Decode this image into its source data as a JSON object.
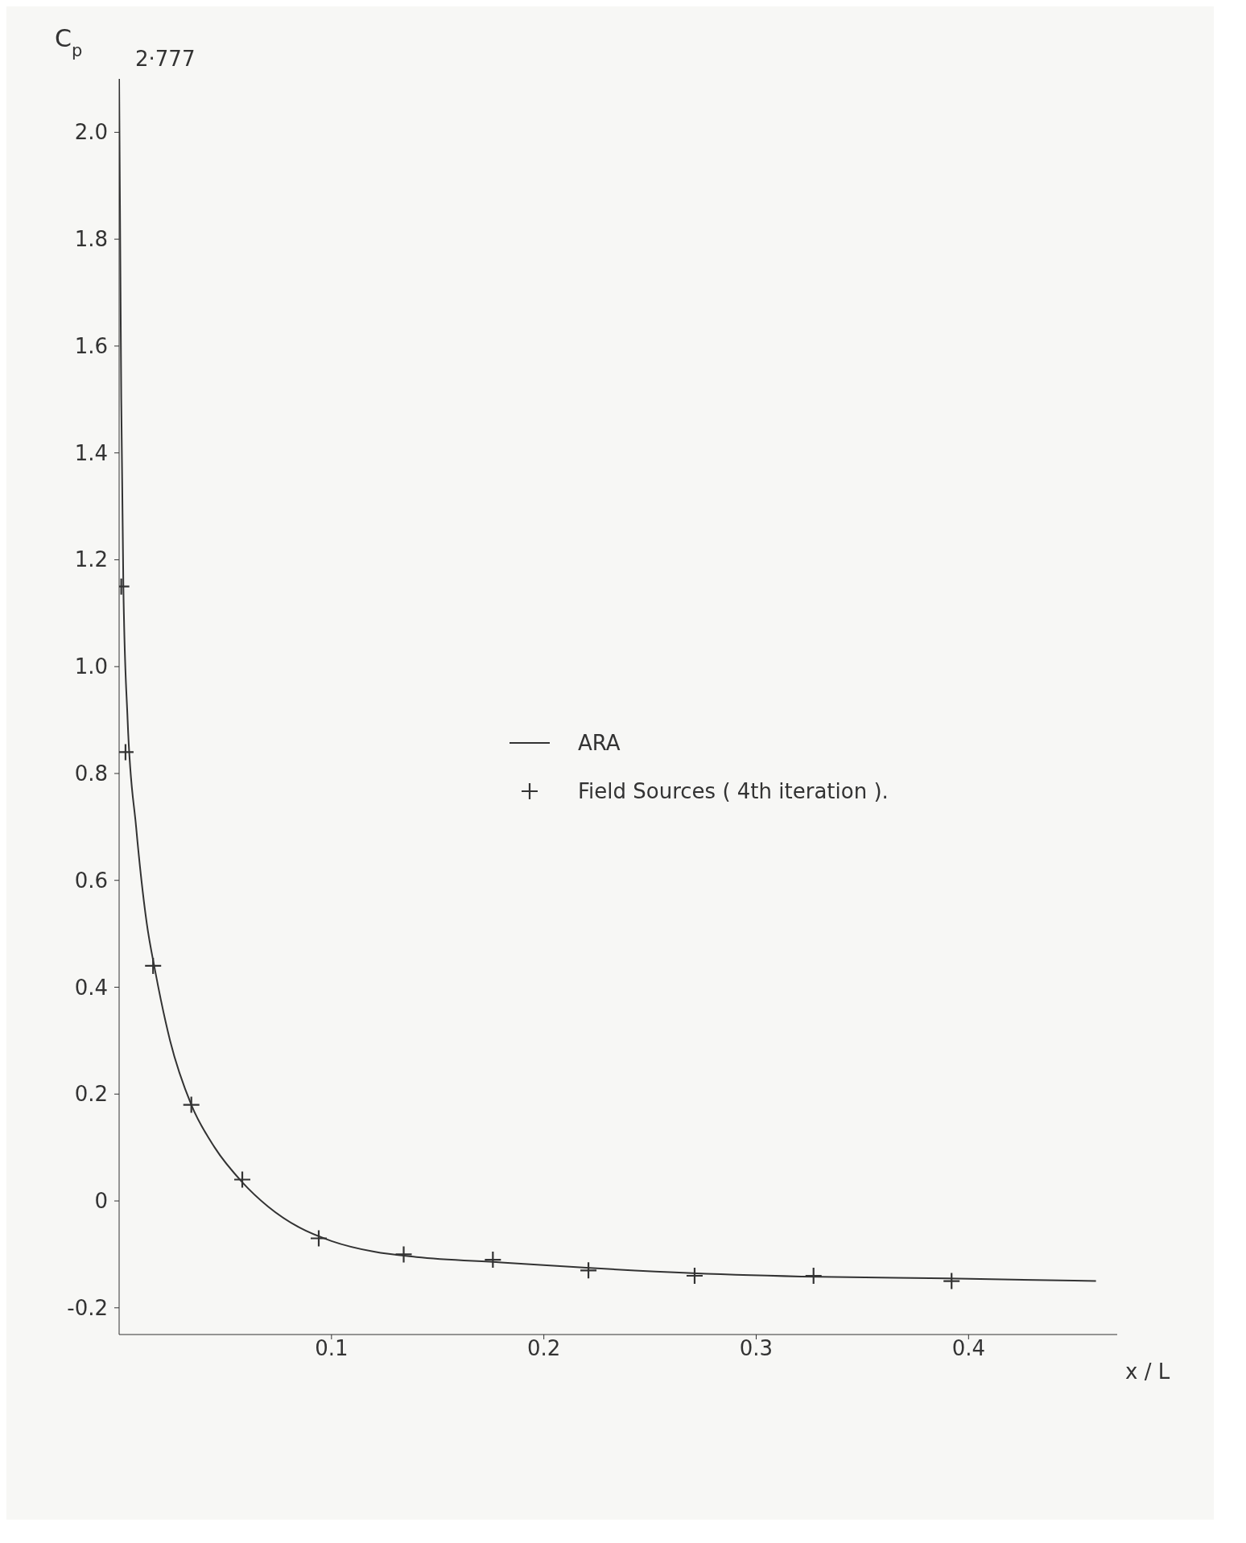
{
  "chart_data": {
    "type": "line",
    "xlabel": "x / L",
    "ylabel": "C$_{p}$",
    "annotations": [
      "2·777"
    ],
    "xlim": [
      0,
      0.47
    ],
    "xticks": [
      0.1,
      0.2,
      0.3,
      0.4
    ],
    "ylim": [
      -0.25,
      2.1
    ],
    "yticks": [
      -0.2,
      0,
      0.2,
      0.4,
      0.6,
      0.8,
      {
        "value": 1.0,
        "label": "1.0"
      },
      1.2,
      1.4,
      1.6,
      1.8,
      {
        "value": 2.0,
        "label": "2.0"
      }
    ],
    "grid": false,
    "legend": "center",
    "series": [
      {
        "name": "ARA",
        "type": "line",
        "color": "#333333",
        "marker": "none",
        "line_style": "solid",
        "x": [
          0,
          0.001,
          0.002,
          0.004,
          0.008,
          0.013,
          0.017,
          0.024,
          0.034,
          0.045,
          0.058,
          0.07,
          0.085,
          0.1,
          0.12,
          0.14,
          0.18,
          0.22,
          0.27,
          0.33,
          0.39,
          0.46
        ],
        "values": [
          2.1,
          1.5,
          1.15,
          0.9,
          0.7,
          0.52,
          0.43,
          0.3,
          0.18,
          0.1,
          0.035,
          -0.01,
          -0.05,
          -0.075,
          -0.095,
          -0.105,
          -0.115,
          -0.125,
          -0.135,
          -0.142,
          -0.145,
          -0.15
        ]
      },
      {
        "name": "Field Sources ( 4th iteration ).",
        "type": "scatter",
        "color": "#333333",
        "marker": "cross",
        "x": [
          0.001,
          0.003,
          0.016,
          0.034,
          0.058,
          0.094,
          0.134,
          0.176,
          0.221,
          0.271,
          0.327,
          0.392
        ],
        "values": [
          1.15,
          0.84,
          0.44,
          0.18,
          0.04,
          -0.07,
          -0.1,
          -0.11,
          -0.13,
          -0.14,
          -0.14,
          -0.15
        ]
      }
    ]
  }
}
